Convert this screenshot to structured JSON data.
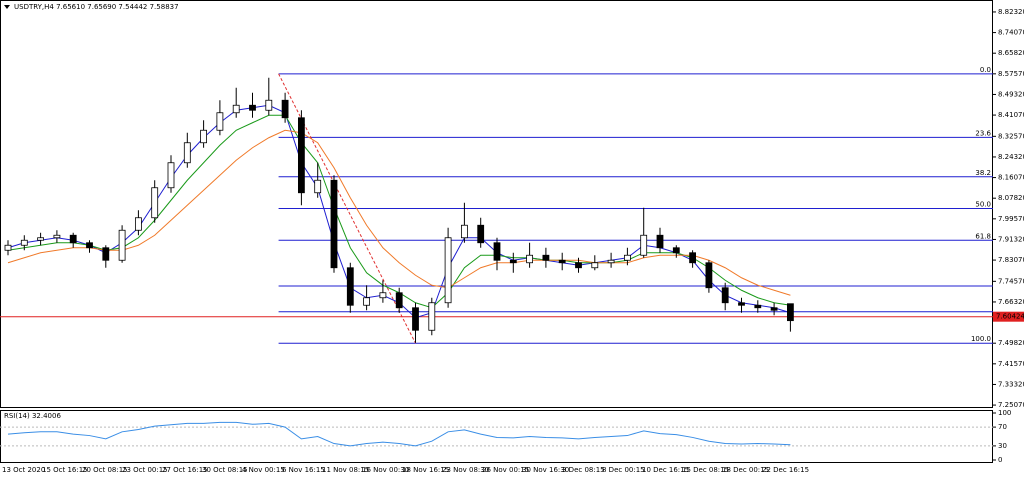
{
  "chart_data": {
    "type": "candlestick",
    "title": "USDTRY,H4 7.65610 7.65690 7.54442 7.58837",
    "open": [
      7.87,
      7.89,
      7.91,
      7.92,
      7.93,
      7.9,
      7.88,
      7.83,
      7.95,
      8.0,
      8.12,
      8.22,
      8.3,
      8.35,
      8.42,
      8.45,
      8.43,
      8.47,
      8.4,
      8.1,
      8.15,
      7.8,
      7.65,
      7.68,
      7.7,
      7.64,
      7.55,
      7.66,
      7.92,
      7.97,
      7.9,
      7.83,
      7.82,
      7.85,
      7.83,
      7.82,
      7.8,
      7.82,
      7.83,
      7.85,
      7.93,
      7.88,
      7.86,
      7.82,
      7.72,
      7.66,
      7.65,
      7.64,
      7.6561
    ],
    "high": [
      7.91,
      7.93,
      7.94,
      7.95,
      7.94,
      7.91,
      7.89,
      7.97,
      8.03,
      8.15,
      8.25,
      8.34,
      8.39,
      8.47,
      8.52,
      8.5,
      8.56,
      8.5,
      8.43,
      8.22,
      8.17,
      7.82,
      7.73,
      7.75,
      7.72,
      7.66,
      7.68,
      7.96,
      8.06,
      8.0,
      7.92,
      7.86,
      7.9,
      7.88,
      7.86,
      7.84,
      7.85,
      7.86,
      7.88,
      8.04,
      7.96,
      7.89,
      7.87,
      7.83,
      7.74,
      7.68,
      7.67,
      7.66,
      7.6569
    ],
    "low": [
      7.85,
      7.87,
      7.89,
      7.9,
      7.88,
      7.86,
      7.8,
      7.82,
      7.93,
      7.98,
      8.1,
      8.2,
      8.28,
      8.33,
      8.4,
      8.4,
      8.41,
      8.38,
      8.05,
      8.08,
      7.78,
      7.62,
      7.63,
      7.66,
      7.62,
      7.5,
      7.53,
      7.64,
      7.9,
      7.88,
      7.79,
      7.78,
      7.8,
      7.8,
      7.79,
      7.78,
      7.79,
      7.8,
      7.81,
      7.84,
      7.86,
      7.84,
      7.8,
      7.7,
      7.63,
      7.62,
      7.62,
      7.61,
      7.54442
    ],
    "close": [
      7.89,
      7.91,
      7.92,
      7.93,
      7.9,
      7.88,
      7.83,
      7.95,
      8.0,
      8.12,
      8.22,
      8.3,
      8.35,
      8.42,
      8.45,
      8.43,
      8.47,
      8.4,
      8.1,
      8.15,
      7.8,
      7.65,
      7.68,
      7.7,
      7.64,
      7.55,
      7.66,
      7.92,
      7.97,
      7.9,
      7.83,
      7.82,
      7.85,
      7.83,
      7.82,
      7.8,
      7.82,
      7.83,
      7.85,
      7.93,
      7.88,
      7.86,
      7.82,
      7.72,
      7.66,
      7.65,
      7.64,
      7.63,
      7.58837
    ],
    "series": [
      {
        "color": "#1f1fd0",
        "values": [
          7.88,
          7.9,
          7.91,
          7.92,
          7.91,
          7.89,
          7.86,
          7.9,
          7.96,
          8.06,
          8.16,
          8.25,
          8.32,
          8.38,
          8.43,
          8.44,
          8.45,
          8.42,
          8.22,
          8.12,
          7.9,
          7.72,
          7.68,
          7.69,
          7.66,
          7.6,
          7.62,
          7.8,
          7.92,
          7.92,
          7.86,
          7.83,
          7.84,
          7.83,
          7.82,
          7.81,
          7.82,
          7.83,
          7.84,
          7.89,
          7.88,
          7.86,
          7.83,
          7.75,
          7.69,
          7.66,
          7.65,
          7.64,
          7.62
        ]
      },
      {
        "color": "#1a9a1a",
        "values": [
          7.87,
          7.88,
          7.89,
          7.9,
          7.9,
          7.89,
          7.87,
          7.88,
          7.92,
          7.99,
          8.07,
          8.15,
          8.22,
          8.29,
          8.35,
          8.38,
          8.41,
          8.41,
          8.3,
          8.22,
          8.04,
          7.88,
          7.78,
          7.73,
          7.7,
          7.66,
          7.64,
          7.7,
          7.8,
          7.85,
          7.85,
          7.84,
          7.84,
          7.83,
          7.83,
          7.82,
          7.82,
          7.82,
          7.83,
          7.86,
          7.86,
          7.86,
          7.84,
          7.8,
          7.75,
          7.71,
          7.68,
          7.66,
          7.65
        ]
      },
      {
        "color": "#f07a2a",
        "values": [
          7.82,
          7.84,
          7.86,
          7.87,
          7.88,
          7.88,
          7.87,
          7.87,
          7.89,
          7.93,
          7.99,
          8.05,
          8.11,
          8.17,
          8.23,
          8.28,
          8.32,
          8.35,
          8.34,
          8.3,
          8.2,
          8.08,
          7.97,
          7.88,
          7.82,
          7.77,
          7.73,
          7.72,
          7.76,
          7.8,
          7.82,
          7.82,
          7.83,
          7.83,
          7.83,
          7.83,
          7.82,
          7.82,
          7.82,
          7.84,
          7.85,
          7.85,
          7.85,
          7.83,
          7.8,
          7.76,
          7.73,
          7.71,
          7.69
        ]
      }
    ],
    "ylim": [
      7.239,
      8.871
    ],
    "yticks": [
      {
        "value": 8.8232,
        "label": "8.82320"
      },
      {
        "value": 8.7407,
        "label": "8.74070"
      },
      {
        "value": 8.6582,
        "label": "8.65820"
      },
      {
        "value": 8.5757,
        "label": "8.57570"
      },
      {
        "value": 8.4932,
        "label": "8.49320"
      },
      {
        "value": 8.4107,
        "label": "8.41070"
      },
      {
        "value": 8.3257,
        "label": "8.32570"
      },
      {
        "value": 8.2432,
        "label": "8.24320"
      },
      {
        "value": 8.1607,
        "label": "8.16070"
      },
      {
        "value": 8.0782,
        "label": "8.07820"
      },
      {
        "value": 7.9957,
        "label": "7.99570"
      },
      {
        "value": 7.9132,
        "label": "7.91320"
      },
      {
        "value": 7.8307,
        "label": "7.83070"
      },
      {
        "value": 7.7457,
        "label": "7.74570"
      },
      {
        "value": 7.6632,
        "label": "7.66320"
      },
      {
        "value": 7.4982,
        "label": "7.49820"
      },
      {
        "value": 7.4157,
        "label": "7.41570"
      },
      {
        "value": 7.3332,
        "label": "7.33320"
      },
      {
        "value": 7.2507,
        "label": "7.25070"
      }
    ],
    "fibo": {
      "color": "#1f1fd0",
      "trend_color": "#e03030",
      "levels": [
        {
          "label": "0.0",
          "value": 8.5757
        },
        {
          "label": "23.6",
          "value": 8.3214
        },
        {
          "label": "38.2",
          "value": 8.164
        },
        {
          "label": "50.0",
          "value": 8.037
        },
        {
          "label": "61.8",
          "value": 7.91
        },
        {
          "label": "100.0",
          "value": 7.4982
        }
      ]
    },
    "hlines": [
      7.727,
      7.624
    ],
    "current_price": {
      "value": 7.60424,
      "label": "7.60424",
      "color": "#e02020"
    },
    "x_labels": [
      "13 Oct 2020",
      "15 Oct 16:15",
      "20 Oct 08:15",
      "23 Oct 00:15",
      "27 Oct 16:15",
      "30 Oct 08:15",
      "4 Nov 00:15",
      "6 Nov 16:15",
      "11 Nov 08:15",
      "16 Nov 00:30",
      "18 Nov 16:15",
      "23 Nov 08:30",
      "26 Nov 00:15",
      "30 Nov 16:30",
      "3 Dec 08:15",
      "8 Dec 00:15",
      "10 Dec 16:15",
      "15 Dec 08:15",
      "18 Dec 00:15",
      "22 Dec 16:15"
    ],
    "rsi": {
      "title": "RSI(14) 32.4006",
      "color": "#3a8ee6",
      "ylim": [
        0,
        100
      ],
      "yticks": [
        100,
        70,
        30,
        0
      ],
      "levels": [
        70,
        30
      ],
      "values": [
        55,
        58,
        60,
        60,
        55,
        52,
        45,
        60,
        65,
        72,
        75,
        78,
        78,
        80,
        80,
        76,
        78,
        70,
        45,
        50,
        35,
        30,
        35,
        38,
        35,
        30,
        40,
        60,
        64,
        55,
        48,
        47,
        50,
        48,
        47,
        45,
        48,
        50,
        52,
        62,
        56,
        54,
        48,
        40,
        35,
        34,
        35,
        34,
        32.4006
      ]
    }
  }
}
